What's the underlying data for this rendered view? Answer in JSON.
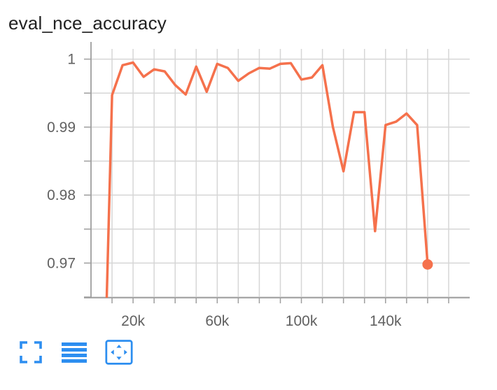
{
  "card": {
    "title": "eval_nce_accuracy"
  },
  "colors": {
    "series": "#f5714c",
    "grid": "#d6d6d6",
    "axis": "#9e9e9e",
    "tick_text": "#616161",
    "toolbar_icon": "#2d8ef0"
  },
  "toolbar": {
    "icons": [
      "fullscreen-icon",
      "toggle-log-scale-icon",
      "fit-domain-icon"
    ]
  },
  "chart_data": {
    "type": "line",
    "title": "eval_nce_accuracy",
    "xlabel": "",
    "ylabel": "",
    "xlim": [
      0,
      180000
    ],
    "ylim": [
      0.9649,
      1.0015
    ],
    "x_ticks": [
      20000,
      60000,
      100000,
      140000
    ],
    "x_tick_labels": [
      "20k",
      "60k",
      "100k",
      "140k"
    ],
    "y_ticks": [
      0.97,
      0.98,
      0.99,
      1
    ],
    "y_tick_labels": [
      "0.97",
      "0.98",
      "0.99",
      "1"
    ],
    "grid": true,
    "legend": "none",
    "series": [
      {
        "color": "#f5714c",
        "x": [
          7500,
          10000,
          15000,
          20000,
          25000,
          30000,
          35000,
          40000,
          45000,
          50000,
          55000,
          60000,
          65000,
          70000,
          75000,
          80000,
          85000,
          90000,
          95000,
          100000,
          105000,
          110000,
          115000,
          120000,
          125000,
          130000,
          135000,
          140000,
          145000,
          150000,
          155000,
          160000
        ],
        "y": [
          0.965,
          0.9947,
          0.9991,
          0.9995,
          0.9974,
          0.9985,
          0.9982,
          0.9962,
          0.9948,
          0.9989,
          0.9952,
          0.9993,
          0.9987,
          0.9968,
          0.9979,
          0.9987,
          0.9986,
          0.9993,
          0.9994,
          0.997,
          0.9973,
          0.9991,
          0.99,
          0.9835,
          0.9922,
          0.9922,
          0.9747,
          0.9903,
          0.9908,
          0.992,
          0.9903,
          0.9698
        ],
        "marker_last": true
      }
    ]
  }
}
